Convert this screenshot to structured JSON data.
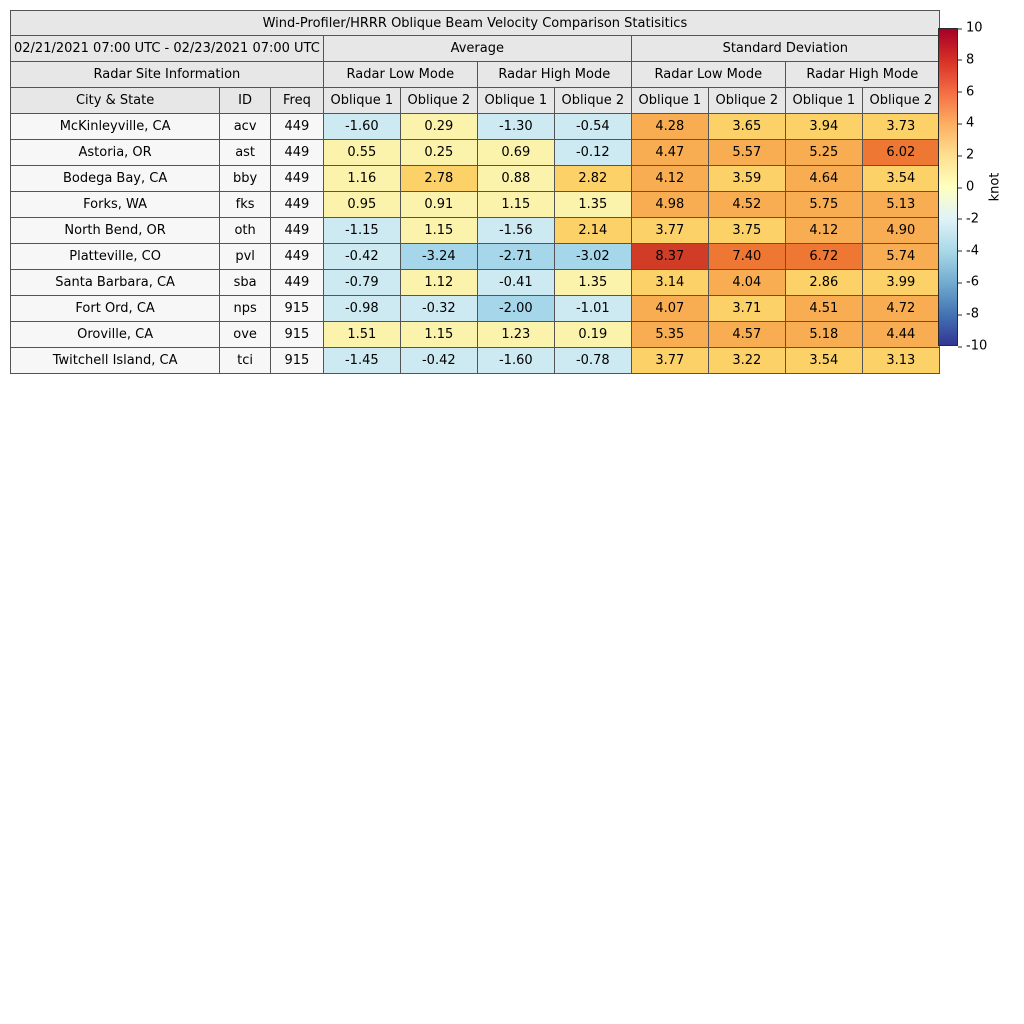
{
  "chart_data": {
    "type": "table",
    "subtype": "heatmap-table",
    "title": "Wind-Profiler/HRRR Oblique Beam Velocity Comparison Statisitics",
    "date_range": "02/21/2021 07:00 UTC - 02/23/2021 07:00 UTC",
    "group_headers": {
      "site": "Radar Site Information",
      "average": "Average",
      "std": "Standard Deviation"
    },
    "mode_headers": [
      "Radar Low Mode",
      "Radar High Mode",
      "Radar Low Mode",
      "Radar High Mode"
    ],
    "columns": [
      "City & State",
      "ID",
      "Freq",
      "Oblique 1",
      "Oblique 2",
      "Oblique 1",
      "Oblique 2",
      "Oblique 1",
      "Oblique 2",
      "Oblique 1",
      "Oblique 2"
    ],
    "rows": [
      {
        "city": "McKinleyville, CA",
        "id": "acv",
        "freq": "449",
        "values": [
          -1.6,
          0.29,
          -1.3,
          -0.54,
          4.28,
          3.65,
          3.94,
          3.73
        ]
      },
      {
        "city": "Astoria, OR",
        "id": "ast",
        "freq": "449",
        "values": [
          0.55,
          0.25,
          0.69,
          -0.12,
          4.47,
          5.57,
          5.25,
          6.02
        ]
      },
      {
        "city": "Bodega Bay, CA",
        "id": "bby",
        "freq": "449",
        "values": [
          1.16,
          2.78,
          0.88,
          2.82,
          4.12,
          3.59,
          4.64,
          3.54
        ]
      },
      {
        "city": "Forks, WA",
        "id": "fks",
        "freq": "449",
        "values": [
          0.95,
          0.91,
          1.15,
          1.35,
          4.98,
          4.52,
          5.75,
          5.13
        ]
      },
      {
        "city": "North Bend, OR",
        "id": "oth",
        "freq": "449",
        "values": [
          -1.15,
          1.15,
          -1.56,
          2.14,
          3.77,
          3.75,
          4.12,
          4.9
        ]
      },
      {
        "city": "Platteville, CO",
        "id": "pvl",
        "freq": "449",
        "values": [
          -0.42,
          -3.24,
          -2.71,
          -3.02,
          8.37,
          7.4,
          6.72,
          5.74
        ]
      },
      {
        "city": "Santa Barbara, CA",
        "id": "sba",
        "freq": "449",
        "values": [
          -0.79,
          1.12,
          -0.41,
          1.35,
          3.14,
          4.04,
          2.86,
          3.99
        ]
      },
      {
        "city": "Fort Ord, CA",
        "id": "nps",
        "freq": "915",
        "values": [
          -0.98,
          -0.32,
          -2.0,
          -1.01,
          4.07,
          3.71,
          4.51,
          4.72
        ]
      },
      {
        "city": "Oroville, CA",
        "id": "ove",
        "freq": "915",
        "values": [
          1.51,
          1.15,
          1.23,
          0.19,
          5.35,
          4.57,
          5.18,
          4.44
        ]
      },
      {
        "city": "Twitchell Island, CA",
        "id": "tci",
        "freq": "915",
        "values": [
          -1.45,
          -0.42,
          -1.6,
          -0.78,
          3.77,
          3.22,
          3.54,
          3.13
        ]
      }
    ],
    "colorbar": {
      "label": "knot",
      "min": -10,
      "max": 10,
      "ticks": [
        10,
        8,
        6,
        4,
        2,
        0,
        -2,
        -4,
        -6,
        -8,
        -10
      ],
      "bin_colors": [
        "#313695",
        "#4575b4",
        "#74add1",
        "#a6d6ea",
        "#cde9f2",
        "#fbf3ab",
        "#fbd168",
        "#f8ad52",
        "#ee7833",
        "#d13c26"
      ],
      "gradient_colors": [
        "#a50026",
        "#d73027",
        "#f46d43",
        "#fdae61",
        "#fee090",
        "#ffffbf",
        "#e0f3f8",
        "#abd9e9",
        "#74add1",
        "#4575b4",
        "#313695"
      ]
    }
  }
}
